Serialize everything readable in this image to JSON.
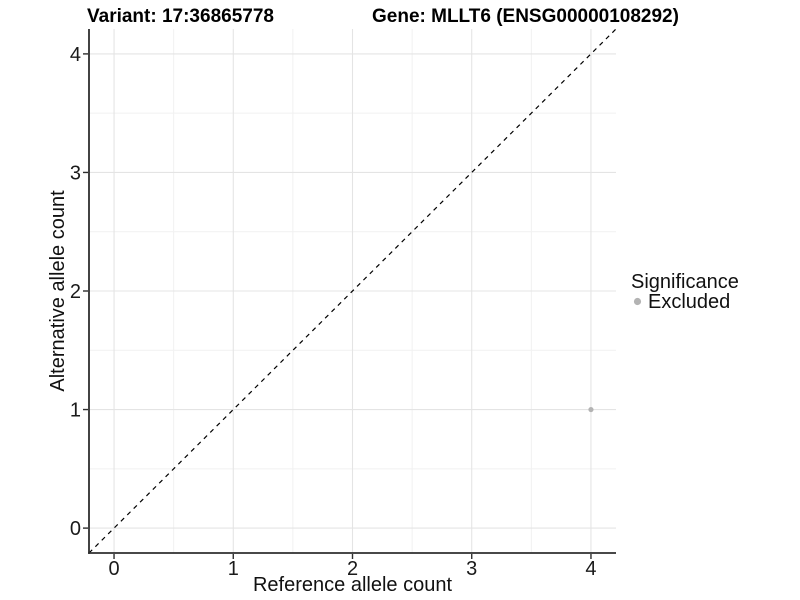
{
  "titles": {
    "variant": "Variant: 17:36865778",
    "gene": "Gene: MLLT6 (ENSG00000108292)"
  },
  "chart_data": {
    "type": "scatter",
    "xlabel": "Reference allele count",
    "ylabel": "Alternative allele count",
    "xlim": [
      -0.21,
      4.21
    ],
    "ylim": [
      -0.21,
      4.21
    ],
    "x_ticks": [
      0,
      1,
      2,
      3,
      4
    ],
    "y_ticks": [
      0,
      1,
      2,
      3,
      4
    ],
    "x_minor_ticks": [
      0.5,
      1.5,
      2.5,
      3.5
    ],
    "y_minor_ticks": [
      0.5,
      1.5,
      2.5,
      3.5
    ],
    "grid": true,
    "reference_line": {
      "type": "identity",
      "equation": "y = x",
      "style": "dashed",
      "color": "#000000"
    },
    "series": [
      {
        "name": "Excluded",
        "color": "#b3b3b3",
        "points": [
          {
            "x": 4,
            "y": 1
          }
        ]
      }
    ],
    "legend": {
      "title": "Significance",
      "position": "right",
      "entries": [
        {
          "label": "Excluded",
          "color": "#b3b3b3"
        }
      ]
    }
  },
  "colors": {
    "background": "#ffffff",
    "axis_line": "#2e2e2e",
    "tick_mark": "#2e2e2e",
    "grid_major": "#e4e4e4",
    "grid_minor": "#f1f1f1",
    "point": "#b3b3b3",
    "text": "#111111"
  }
}
